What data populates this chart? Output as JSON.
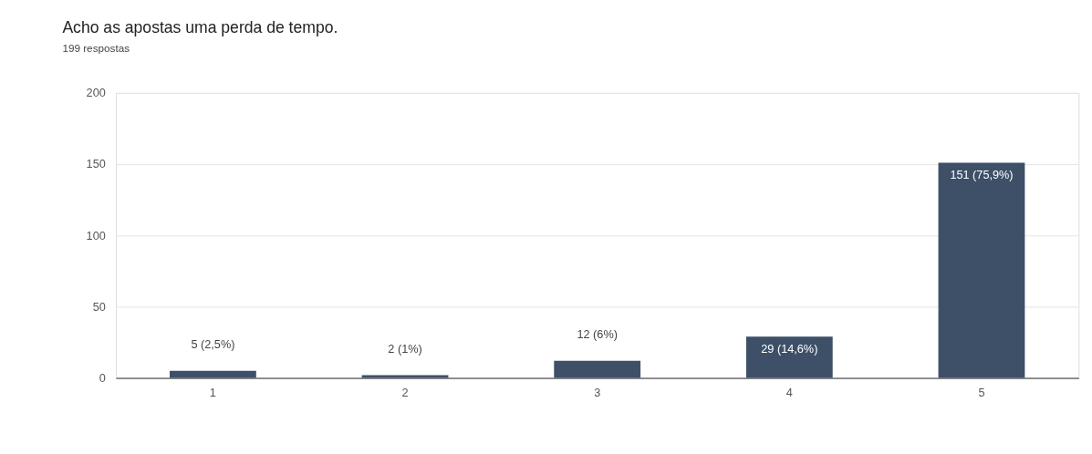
{
  "chart_data": {
    "type": "bar",
    "title": "Acho as apostas uma perda de tempo.",
    "subtitle": "199 respostas",
    "categories": [
      "1",
      "2",
      "3",
      "4",
      "5"
    ],
    "values": [
      5,
      2,
      12,
      29,
      151
    ],
    "value_labels": [
      "5 (2,5%)",
      "2 (1%)",
      "12 (6%)",
      "29 (14,6%)",
      "151 (75,9%)"
    ],
    "color": "#3d5068",
    "ylim": [
      0,
      200
    ],
    "yticks": [
      0,
      50,
      100,
      150,
      200
    ],
    "grid": "y"
  }
}
